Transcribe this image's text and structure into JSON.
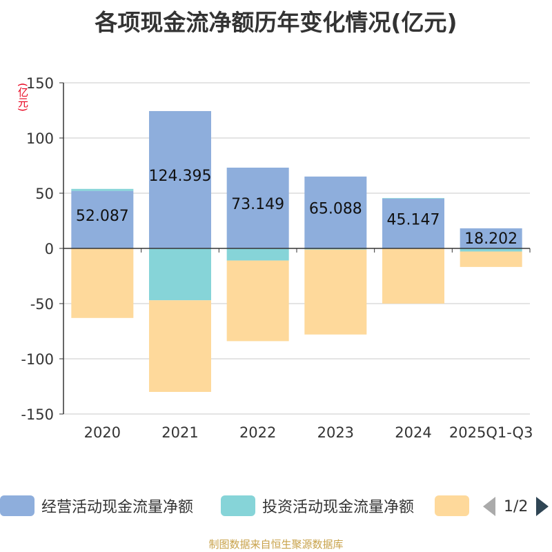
{
  "chart_data": {
    "type": "bar",
    "stacked": true,
    "title": "各项现金流净额历年变化情况(亿元)",
    "ylabel": "(亿元)",
    "ylim": [
      -150,
      150
    ],
    "yticks": [
      150,
      100,
      50,
      0,
      -50,
      -100,
      -150
    ],
    "categories": [
      "2020",
      "2021",
      "2022",
      "2023",
      "2024",
      "2025Q1-Q3"
    ],
    "grid": true,
    "legend_position": "bottom",
    "series": [
      {
        "name": "经营活动现金流量净额",
        "color": "#8eaedc",
        "values": [
          52.087,
          124.395,
          73.149,
          65.088,
          45.147,
          18.202
        ],
        "data_labels": [
          "52.087",
          "124.395",
          "73.149",
          "65.088",
          "45.147",
          "18.202"
        ]
      },
      {
        "name": "投资活动现金流量净额",
        "color": "#86d4d8",
        "values": [
          1.8,
          -47.0,
          -11.0,
          -1.0,
          0.5,
          -2.8
        ]
      },
      {
        "name": "",
        "color": "#fed99b",
        "values": [
          -63.0,
          -83.0,
          -73.0,
          -77.0,
          -50.0,
          -14.0
        ]
      }
    ]
  },
  "legend": {
    "pager": "1/2"
  },
  "source": "制图数据来自恒生聚源数据库"
}
